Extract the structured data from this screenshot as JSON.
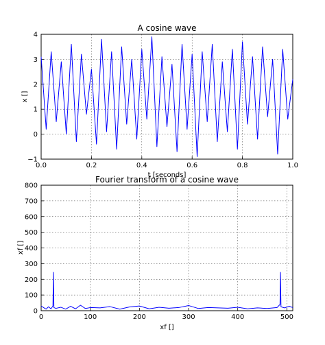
{
  "chart_data": [
    {
      "type": "line",
      "title": "A cosine wave",
      "xlabel": "t [seconds]",
      "ylabel": "x []",
      "xlim": [
        0,
        1.0
      ],
      "ylim": [
        -1,
        4
      ],
      "xticks": [
        "0.0",
        "0.2",
        "0.4",
        "0.6",
        "0.8",
        "1.0"
      ],
      "xtick_values": [
        0.0,
        0.2,
        0.4,
        0.6,
        0.8,
        1.0
      ],
      "yticks": [
        "−1",
        "0",
        "1",
        "2",
        "3",
        "4"
      ],
      "ytick_values": [
        -1,
        0,
        1,
        2,
        3,
        4
      ],
      "grid": true,
      "series": [
        {
          "color": "#0000ff",
          "x": [
            0.0,
            0.02,
            0.04,
            0.06,
            0.08,
            0.1,
            0.12,
            0.14,
            0.16,
            0.18,
            0.2,
            0.22,
            0.24,
            0.26,
            0.28,
            0.3,
            0.32,
            0.34,
            0.36,
            0.38,
            0.4,
            0.42,
            0.44,
            0.46,
            0.48,
            0.5,
            0.52,
            0.54,
            0.56,
            0.58,
            0.6,
            0.62,
            0.64,
            0.66,
            0.68,
            0.7,
            0.72,
            0.74,
            0.76,
            0.78,
            0.8,
            0.82,
            0.84,
            0.86,
            0.88,
            0.9,
            0.92,
            0.94,
            0.96,
            0.98,
            1.0
          ],
          "y": [
            3.1,
            0.2,
            3.3,
            0.5,
            2.9,
            0.0,
            3.6,
            -0.3,
            3.2,
            0.8,
            2.6,
            -0.4,
            3.8,
            0.1,
            3.3,
            -0.6,
            3.5,
            0.4,
            3.0,
            -0.2,
            3.4,
            0.6,
            3.9,
            -0.5,
            3.1,
            0.3,
            2.8,
            -0.7,
            3.6,
            0.2,
            3.2,
            -0.9,
            3.3,
            0.5,
            3.6,
            -0.3,
            2.9,
            0.1,
            3.4,
            -0.6,
            3.7,
            0.4,
            3.1,
            -0.2,
            3.5,
            0.7,
            3.0,
            -0.8,
            3.4,
            0.6,
            2.2
          ]
        }
      ]
    },
    {
      "type": "line",
      "title": "Fourier transform of a cosine wave",
      "xlabel": "xf []",
      "ylabel": "xf []",
      "xlim": [
        0,
        512
      ],
      "ylim": [
        0,
        800
      ],
      "xticks": [
        "0",
        "100",
        "200",
        "300",
        "400",
        "500"
      ],
      "xtick_values": [
        0,
        100,
        200,
        300,
        400,
        500
      ],
      "yticks": [
        "0",
        "100",
        "200",
        "300",
        "400",
        "500",
        "600",
        "700",
        "800"
      ],
      "ytick_values": [
        0,
        100,
        200,
        300,
        400,
        500,
        600,
        700,
        800
      ],
      "grid": true,
      "series": [
        {
          "color": "#0000ff",
          "x": [
            0,
            5,
            10,
            15,
            20,
            24,
            25,
            26,
            30,
            40,
            50,
            60,
            70,
            80,
            90,
            100,
            120,
            140,
            160,
            180,
            200,
            220,
            240,
            260,
            280,
            300,
            320,
            340,
            360,
            380,
            400,
            420,
            440,
            460,
            480,
            486,
            487,
            488,
            495,
            505,
            512
          ],
          "y": [
            30,
            20,
            10,
            25,
            12,
            30,
            245,
            20,
            15,
            22,
            10,
            28,
            12,
            35,
            14,
            20,
            18,
            26,
            10,
            24,
            30,
            12,
            22,
            16,
            20,
            33,
            14,
            20,
            18,
            16,
            22,
            12,
            18,
            14,
            20,
            40,
            245,
            25,
            18,
            28,
            20
          ]
        }
      ]
    }
  ]
}
